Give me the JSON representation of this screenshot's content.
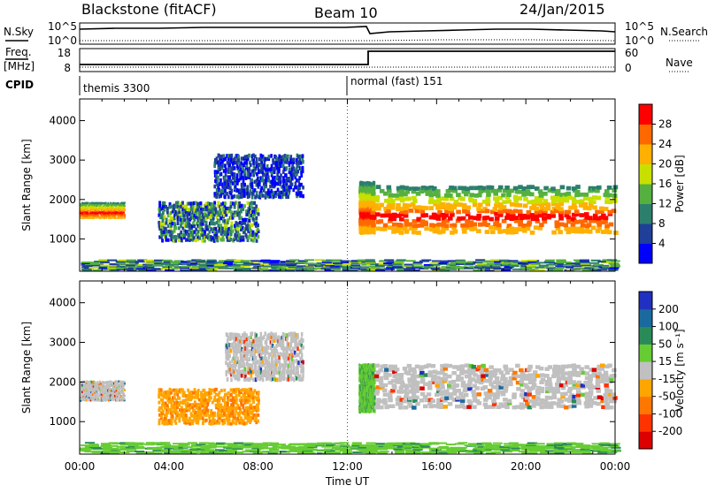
{
  "header": {
    "site": "Blackstone (fitACF)",
    "beam": "Beam 10",
    "date": "24/Jan/2015"
  },
  "sidepanel": {
    "nsky": "N.Sky",
    "nsearch": "N.Search",
    "freq": "Freq.",
    "freq_unit": "[MHz]",
    "nave": "Nave",
    "cpid": "CPID"
  },
  "strip_ticks": {
    "noise_top": "10^5",
    "noise_bottom": "10^0",
    "freq_top": "18",
    "freq_bottom": "8",
    "nave_top": "60",
    "nave_bottom": "0"
  },
  "cpid_labels": {
    "first": "themis 3300",
    "second": "normal (fast) 151"
  },
  "chart_data": [
    {
      "type": "heatmap",
      "title": "Power",
      "ylabel": "Slant Range [km]",
      "xlabel": "Time UT",
      "ylim": [
        180,
        4550
      ],
      "yticks": [
        "1000",
        "2000",
        "3000",
        "4000"
      ],
      "xticks": [
        "00:00",
        "04:00",
        "08:00",
        "12:00",
        "16:00",
        "20:00",
        "00:00"
      ],
      "colorbar": {
        "label": "Power [dB]",
        "ticks": [
          "4",
          "8",
          "12",
          "16",
          "20",
          "24",
          "28"
        ],
        "colors": [
          "#0000ff",
          "#1f3f99",
          "#2c7f6c",
          "#55b040",
          "#c8e000",
          "#ffb000",
          "#ff6800",
          "#ff0000"
        ]
      },
      "bands": [
        {
          "t": [
            0.0,
            2.0
          ],
          "range": [
            1500,
            1900
          ],
          "level": "high"
        },
        {
          "t": [
            3.5,
            8.0
          ],
          "range": [
            900,
            1900
          ],
          "level": "mid"
        },
        {
          "t": [
            6.0,
            10.0
          ],
          "range": [
            2000,
            3100
          ],
          "level": "low"
        },
        {
          "t": [
            12.5,
            13.2
          ],
          "range": [
            1100,
            2400
          ],
          "level": "high"
        },
        {
          "t": [
            13.0,
            24.0
          ],
          "range": [
            1100,
            2300
          ],
          "level": "high"
        },
        {
          "t": [
            0.0,
            24.0
          ],
          "range": [
            180,
            450
          ],
          "level": "mid"
        }
      ]
    },
    {
      "type": "heatmap",
      "title": "Velocity",
      "ylabel": "Slant Range [km]",
      "xlabel": "Time UT",
      "ylim": [
        180,
        4550
      ],
      "yticks": [
        "1000",
        "2000",
        "3000",
        "4000"
      ],
      "xticks": [
        "00:00",
        "04:00",
        "08:00",
        "12:00",
        "16:00",
        "20:00",
        "00:00"
      ],
      "colorbar": {
        "label": "Velocity [m s⁻¹]",
        "ticks": [
          "200",
          "100",
          "50",
          "15",
          "-15",
          "-50",
          "-100",
          "-200"
        ],
        "colors": [
          "#2030c0",
          "#1b6a9e",
          "#2a8b58",
          "#66cc33",
          "#c0c0c0",
          "#ffa500",
          "#ff7700",
          "#ff3300",
          "#dd0000"
        ]
      },
      "bands": [
        {
          "t": [
            0.0,
            2.0
          ],
          "range": [
            1500,
            2000
          ],
          "level": "ground"
        },
        {
          "t": [
            3.5,
            8.0
          ],
          "range": [
            900,
            1800
          ],
          "level": "negative"
        },
        {
          "t": [
            6.5,
            10.0
          ],
          "range": [
            2000,
            3200
          ],
          "level": "ground"
        },
        {
          "t": [
            12.5,
            13.2
          ],
          "range": [
            1200,
            2400
          ],
          "level": "positive"
        },
        {
          "t": [
            13.2,
            24.0
          ],
          "range": [
            1300,
            2400
          ],
          "level": "ground"
        },
        {
          "t": [
            0.0,
            24.0
          ],
          "range": [
            180,
            450
          ],
          "level": "positive"
        }
      ]
    }
  ]
}
